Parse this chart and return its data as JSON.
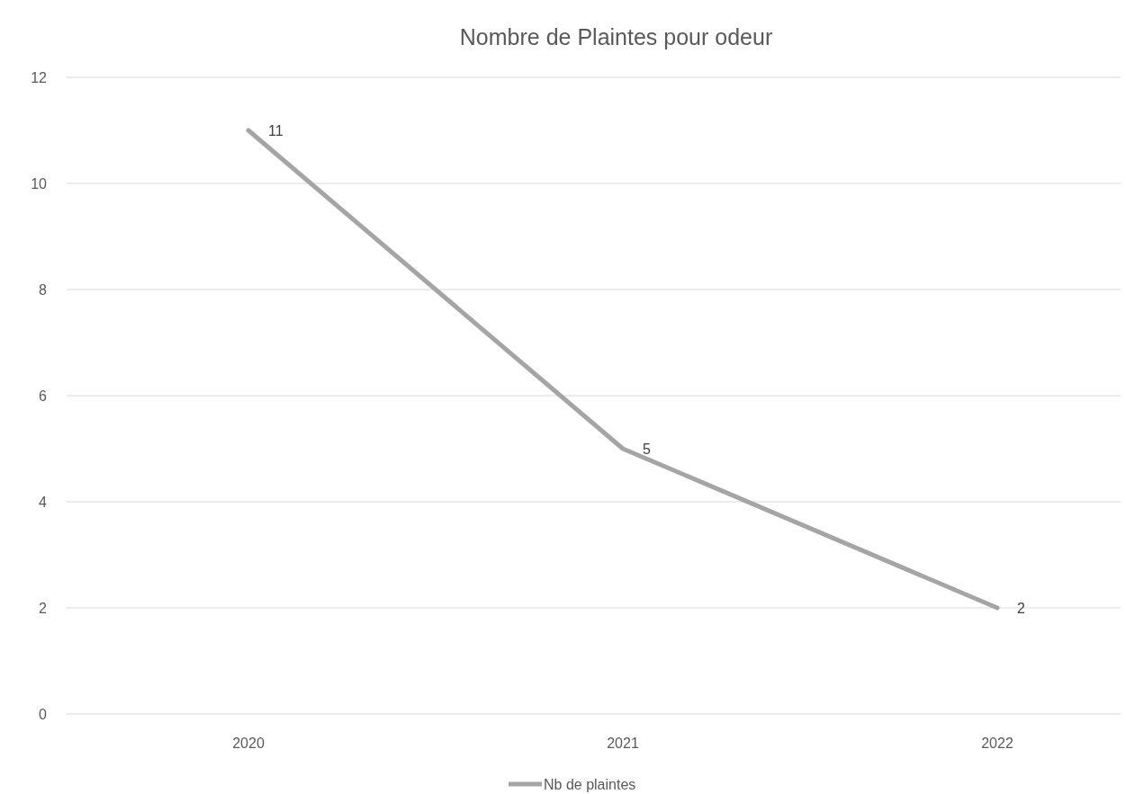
{
  "chart_data": {
    "type": "line",
    "title": "Nombre de Plaintes pour odeur",
    "categories": [
      "2020",
      "2021",
      "2022"
    ],
    "series": [
      {
        "name": "Nb de plaintes",
        "color": "#a5a5a5",
        "values": [
          11,
          5,
          2
        ]
      }
    ],
    "ylim": [
      0,
      12
    ],
    "yticks": [
      0,
      2,
      4,
      6,
      8,
      10,
      12
    ],
    "grid": "y",
    "legend": "bottom",
    "data_labels": true,
    "marker": "none",
    "line_style": "solid"
  }
}
